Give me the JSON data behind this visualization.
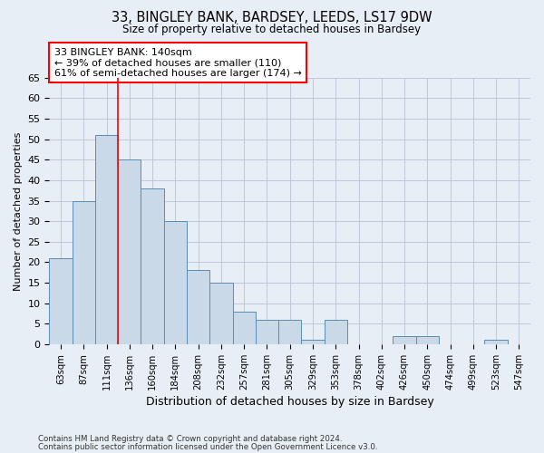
{
  "title_line1": "33, BINGLEY BANK, BARDSEY, LEEDS, LS17 9DW",
  "title_line2": "Size of property relative to detached houses in Bardsey",
  "xlabel": "Distribution of detached houses by size in Bardsey",
  "ylabel": "Number of detached properties",
  "categories": [
    "63sqm",
    "87sqm",
    "111sqm",
    "136sqm",
    "160sqm",
    "184sqm",
    "208sqm",
    "232sqm",
    "257sqm",
    "281sqm",
    "305sqm",
    "329sqm",
    "353sqm",
    "378sqm",
    "402sqm",
    "426sqm",
    "450sqm",
    "474sqm",
    "499sqm",
    "523sqm",
    "547sqm"
  ],
  "values": [
    21,
    35,
    51,
    45,
    38,
    30,
    18,
    15,
    8,
    6,
    6,
    1,
    6,
    0,
    0,
    2,
    2,
    0,
    0,
    1,
    0
  ],
  "bar_color": "#c9d9e8",
  "bar_edge_color": "#5a8db5",
  "ylim": [
    0,
    65
  ],
  "yticks": [
    0,
    5,
    10,
    15,
    20,
    25,
    30,
    35,
    40,
    45,
    50,
    55,
    60,
    65
  ],
  "grid_color": "#c0c8d8",
  "bg_color": "#e8eef5",
  "annotation_box_text": "33 BINGLEY BANK: 140sqm\n← 39% of detached houses are smaller (110)\n61% of semi-detached houses are larger (174) →",
  "annotation_box_color": "white",
  "annotation_box_edge_color": "red",
  "red_line_x": 2.5,
  "footer_line1": "Contains HM Land Registry data © Crown copyright and database right 2024.",
  "footer_line2": "Contains public sector information licensed under the Open Government Licence v3.0."
}
